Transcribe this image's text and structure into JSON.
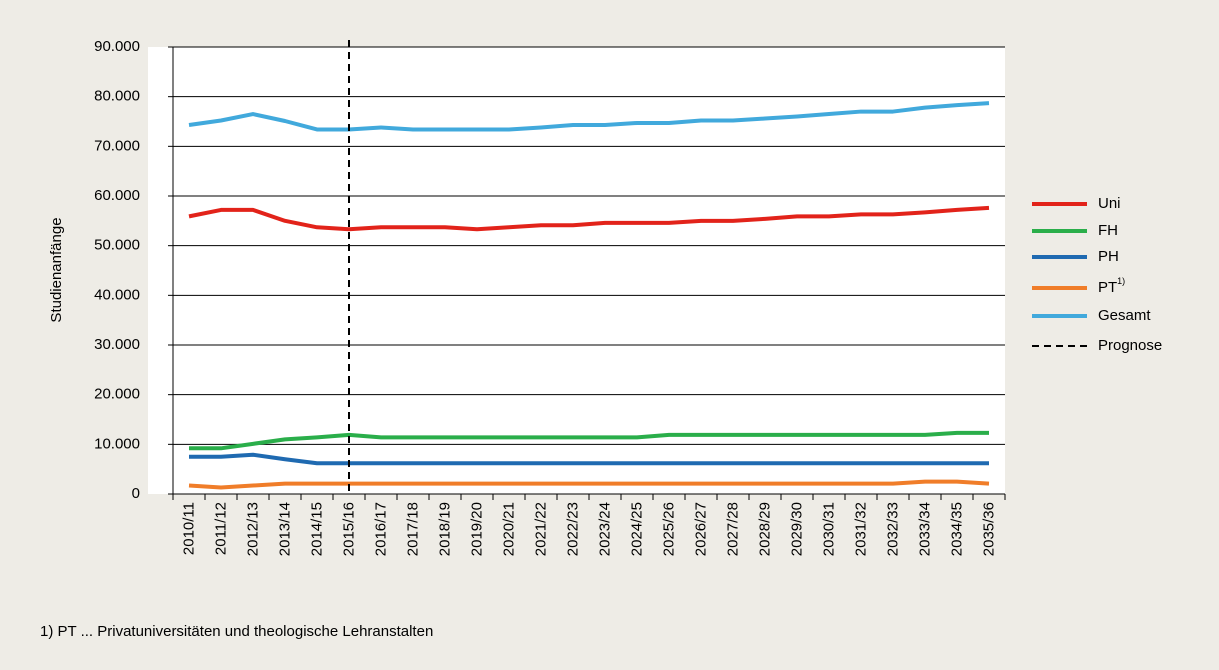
{
  "chart_data": {
    "type": "line",
    "y_axis_label": "Studienanfänge",
    "categories": [
      "2010/11",
      "2011/12",
      "2012/13",
      "2013/14",
      "2014/15",
      "2015/16",
      "2016/17",
      "2017/18",
      "2018/19",
      "2019/20",
      "2020/21",
      "2021/22",
      "2022/23",
      "2023/24",
      "2024/25",
      "2025/26",
      "2026/27",
      "2027/28",
      "2028/29",
      "2029/30",
      "2030/31",
      "2031/32",
      "2032/33",
      "2033/34",
      "2034/35",
      "2035/36"
    ],
    "series": [
      {
        "name": "Uni",
        "color": "#e2231a",
        "values": [
          55900,
          57200,
          57200,
          55000,
          53700,
          53300,
          53700,
          53700,
          53700,
          53300,
          53700,
          54100,
          54100,
          54600,
          54600,
          54600,
          55000,
          55000,
          55400,
          55900,
          55900,
          56300,
          56300,
          56700,
          57200,
          57600
        ]
      },
      {
        "name": "FH",
        "color": "#2aae4a",
        "values": [
          9200,
          9200,
          10100,
          11000,
          11400,
          11900,
          11400,
          11400,
          11400,
          11400,
          11400,
          11400,
          11400,
          11400,
          11400,
          11900,
          11900,
          11900,
          11900,
          11900,
          11900,
          11900,
          11900,
          11900,
          12300,
          12300
        ]
      },
      {
        "name": "PH",
        "color": "#1f6ab1",
        "values": [
          7500,
          7500,
          7900,
          7000,
          6200,
          6200,
          6200,
          6200,
          6200,
          6200,
          6200,
          6200,
          6200,
          6200,
          6200,
          6200,
          6200,
          6200,
          6200,
          6200,
          6200,
          6200,
          6200,
          6200,
          6200,
          6200
        ]
      },
      {
        "name": "PT",
        "name_superscript": "1)",
        "color": "#f07d29",
        "values": [
          1700,
          1300,
          1700,
          2100,
          2100,
          2100,
          2100,
          2100,
          2100,
          2100,
          2100,
          2100,
          2100,
          2100,
          2100,
          2100,
          2100,
          2100,
          2100,
          2100,
          2100,
          2100,
          2100,
          2500,
          2500,
          2100
        ]
      },
      {
        "name": "Gesamt",
        "color": "#41a9dc",
        "values": [
          74300,
          75200,
          76500,
          75100,
          73400,
          73400,
          73800,
          73400,
          73400,
          73400,
          73400,
          73800,
          74300,
          74300,
          74700,
          74700,
          75200,
          75200,
          75600,
          76000,
          76500,
          77000,
          77000,
          77800,
          78300,
          78700
        ]
      }
    ],
    "vline": {
      "name": "Prognose",
      "x": "2015/16",
      "color": "#000000"
    },
    "ylim": [
      0,
      90000
    ],
    "yticks": [
      0,
      {
        "value": 10000,
        "label": "10.000"
      },
      {
        "value": 20000,
        "label": "20.000"
      },
      {
        "value": 30000,
        "label": "30.000"
      },
      {
        "value": 40000,
        "label": "40.000"
      },
      {
        "value": 50000,
        "label": "50.000"
      },
      {
        "value": 60000,
        "label": "60.000"
      },
      {
        "value": 70000,
        "label": "70.000"
      },
      {
        "value": 80000,
        "label": "80.000"
      },
      {
        "value": 90000,
        "label": "90.000"
      }
    ],
    "grid": true,
    "legend": "right",
    "footnote": "1) PT ... Privatuniversitäten und theologische Lehranstalten"
  }
}
